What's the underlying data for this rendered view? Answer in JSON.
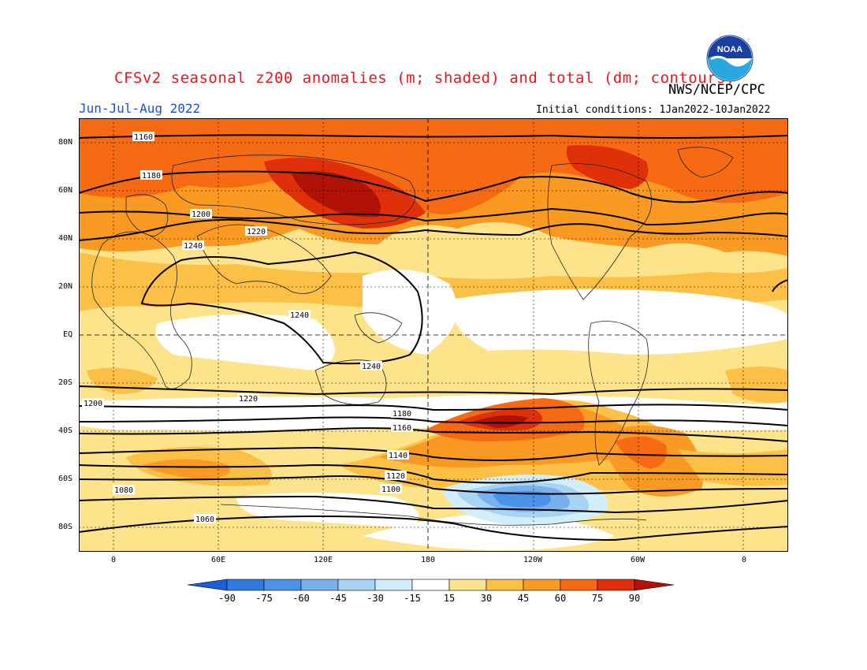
{
  "title": "CFSv2 seasonal z200 anomalies (m; shaded) and total (dm; contours)",
  "season": "Jun-Jul-Aug 2022",
  "agency": "NWS/NCEP/CPC",
  "initial_conditions": "Initial conditions: 1Jan2022-10Jan2022",
  "logo_text": "NOAA",
  "lat_labels": [
    "80N",
    "60N",
    "40N",
    "20N",
    "EQ",
    "20S",
    "40S",
    "60S",
    "80S"
  ],
  "lon_labels": [
    "0",
    "60E",
    "120E",
    "180",
    "120W",
    "60W",
    "0"
  ],
  "colorbar": {
    "labels": [
      "-90",
      "-75",
      "-60",
      "-45",
      "-30",
      "-15",
      "15",
      "30",
      "45",
      "60",
      "75",
      "90"
    ],
    "colors": [
      "#1a5fd6",
      "#2f7ae0",
      "#4b93e8",
      "#78b1ee",
      "#a7d4f3",
      "#d2eefa",
      "#ffffff",
      "#fde38a",
      "#fcc046",
      "#fa9a22",
      "#f56a12",
      "#e0300a",
      "#b01205"
    ]
  },
  "contour_labels": [
    "1160",
    "1180",
    "1200",
    "1220",
    "1240",
    "1240",
    "1240",
    "1220",
    "1200",
    "1180",
    "1160",
    "1140",
    "1120",
    "1100",
    "1080",
    "1060"
  ],
  "colors": {
    "title": "#e8161c",
    "season": "#1f4fd8"
  }
}
